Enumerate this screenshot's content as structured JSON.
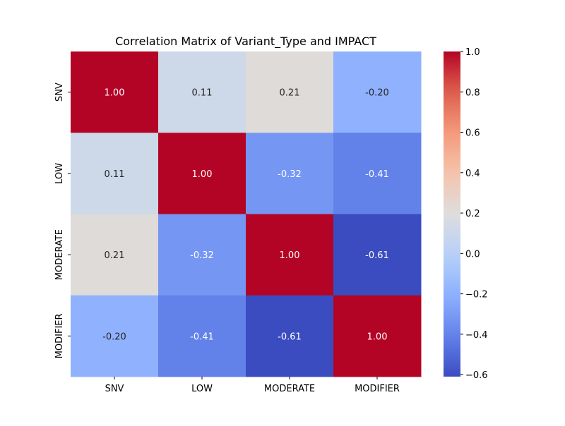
{
  "chart_data": {
    "type": "heatmap",
    "title": "Correlation Matrix of Variant_Type and IMPACT",
    "xlabel": "",
    "ylabel": "",
    "x_categories": [
      "SNV",
      "LOW",
      "MODERATE",
      "MODIFIER"
    ],
    "y_categories": [
      "SNV",
      "LOW",
      "MODERATE",
      "MODIFIER"
    ],
    "values": [
      [
        1.0,
        0.11,
        0.21,
        -0.2
      ],
      [
        0.11,
        1.0,
        -0.32,
        -0.41
      ],
      [
        0.21,
        -0.32,
        1.0,
        -0.61
      ],
      [
        -0.2,
        -0.41,
        -0.61,
        1.0
      ]
    ],
    "value_format": "0.00",
    "colormap": "coolwarm",
    "vmin": -0.61,
    "vmax": 1.0,
    "colorbar": {
      "ticks": [
        1.0,
        0.8,
        0.6,
        0.4,
        0.2,
        0.0,
        -0.2,
        -0.4,
        -0.6
      ],
      "tick_labels": [
        "1.0",
        "0.8",
        "0.6",
        "0.4",
        "0.2",
        "0.0",
        "−0.2",
        "−0.4",
        "−0.6"
      ]
    },
    "grid": false,
    "legend": "colorbar-right"
  }
}
